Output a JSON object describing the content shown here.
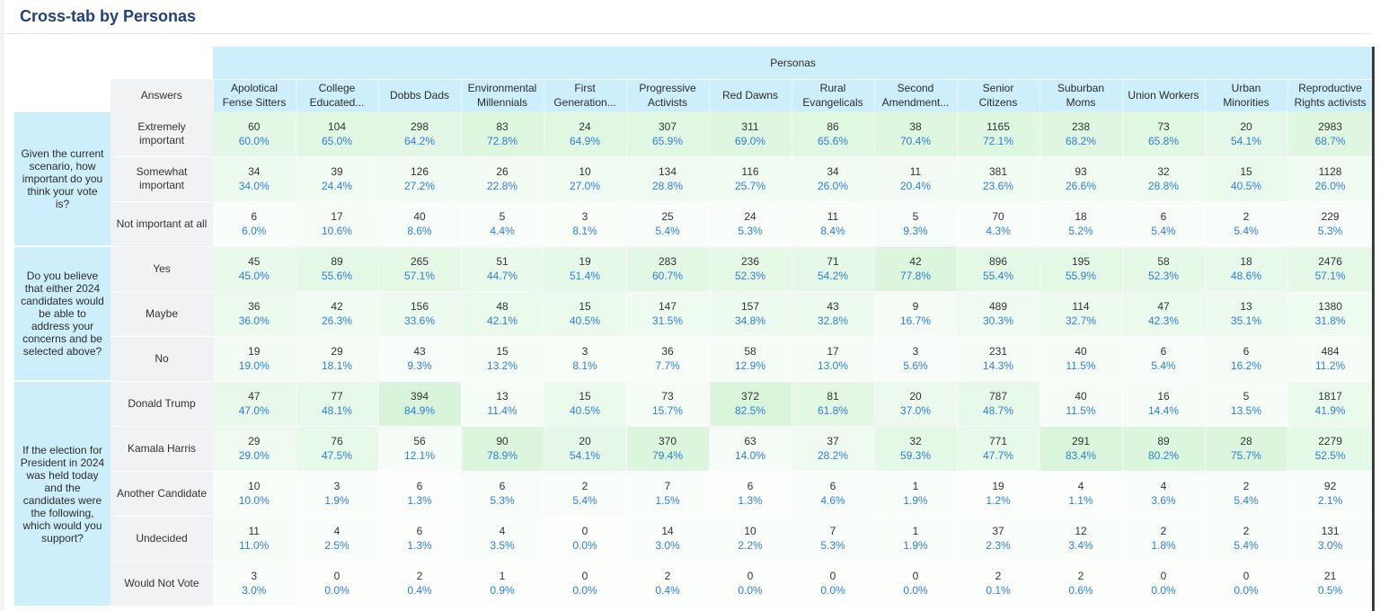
{
  "title": "Cross-tab by Personas",
  "group_header": "Personas",
  "answers_header": "Answers",
  "columns": [
    [
      "Apolotical",
      "Fense Sitters"
    ],
    [
      "College",
      "Educated..."
    ],
    [
      "Dobbs Dads"
    ],
    [
      "Environmental",
      "Millennials"
    ],
    [
      "First",
      "Generation..."
    ],
    [
      "Progressive",
      "Activists"
    ],
    [
      "Red Dawns"
    ],
    [
      "Rural",
      "Evangelicals"
    ],
    [
      "Second",
      "Amendment..."
    ],
    [
      "Senior",
      "Citizens"
    ],
    [
      "Suburban",
      "Moms"
    ],
    [
      "Union Workers"
    ],
    [
      "Urban",
      "Minorities"
    ],
    [
      "Reproductive",
      "Rights activists"
    ]
  ],
  "colors": {
    "header_bg": "#cdeefb",
    "answer_bg": "#f1f2f4",
    "percent_text": "#2d7fd4",
    "title_text": "#23417a"
  },
  "questions": [
    {
      "text": "Given the current scenario, how important do you think your vote is?",
      "rows": [
        {
          "answer": "Extremely important",
          "counts": [
            "60",
            "104",
            "298",
            "83",
            "24",
            "307",
            "311",
            "86",
            "38",
            "1165",
            "238",
            "73",
            "20",
            "2983"
          ],
          "percents": [
            "60.0%",
            "65.0%",
            "64.2%",
            "72.8%",
            "64.9%",
            "65.9%",
            "69.0%",
            "65.6%",
            "70.4%",
            "72.1%",
            "68.2%",
            "65.8%",
            "54.1%",
            "68.7%"
          ],
          "shades": [
            0.6,
            0.65,
            0.64,
            0.73,
            0.65,
            0.66,
            0.69,
            0.66,
            0.7,
            0.72,
            0.68,
            0.66,
            0.54,
            0.69
          ]
        },
        {
          "answer": "Somewhat important",
          "counts": [
            "34",
            "39",
            "126",
            "26",
            "10",
            "134",
            "116",
            "34",
            "11",
            "381",
            "93",
            "32",
            "15",
            "1128"
          ],
          "percents": [
            "34.0%",
            "24.4%",
            "27.2%",
            "22.8%",
            "27.0%",
            "28.8%",
            "25.7%",
            "26.0%",
            "20.4%",
            "23.6%",
            "26.6%",
            "28.8%",
            "40.5%",
            "26.0%"
          ],
          "shades": [
            0.34,
            0.24,
            0.27,
            0.23,
            0.27,
            0.29,
            0.26,
            0.26,
            0.2,
            0.24,
            0.27,
            0.29,
            0.41,
            0.26
          ]
        },
        {
          "answer": "Not important at all",
          "counts": [
            "6",
            "17",
            "40",
            "5",
            "3",
            "25",
            "24",
            "11",
            "5",
            "70",
            "18",
            "6",
            "2",
            "229"
          ],
          "percents": [
            "6.0%",
            "10.6%",
            "8.6%",
            "4.4%",
            "8.1%",
            "5.4%",
            "5.3%",
            "8.4%",
            "9.3%",
            "4.3%",
            "5.2%",
            "5.4%",
            "5.4%",
            "5.3%"
          ],
          "shades": [
            0.06,
            0.11,
            0.09,
            0.04,
            0.08,
            0.05,
            0.05,
            0.08,
            0.09,
            0.04,
            0.05,
            0.05,
            0.05,
            0.05
          ]
        }
      ]
    },
    {
      "text": "Do you believe that either 2024 candidates would be able to address your concerns and be selected above?",
      "rows": [
        {
          "answer": "Yes",
          "counts": [
            "45",
            "89",
            "265",
            "51",
            "19",
            "283",
            "236",
            "71",
            "42",
            "896",
            "195",
            "58",
            "18",
            "2476"
          ],
          "percents": [
            "45.0%",
            "55.6%",
            "57.1%",
            "44.7%",
            "51.4%",
            "60.7%",
            "52.3%",
            "54.2%",
            "77.8%",
            "55.4%",
            "55.9%",
            "52.3%",
            "48.6%",
            "57.1%"
          ],
          "shades": [
            0.45,
            0.56,
            0.57,
            0.45,
            0.51,
            0.61,
            0.52,
            0.54,
            0.78,
            0.55,
            0.56,
            0.52,
            0.49,
            0.57
          ]
        },
        {
          "answer": "Maybe",
          "counts": [
            "36",
            "42",
            "156",
            "48",
            "15",
            "147",
            "157",
            "43",
            "9",
            "489",
            "114",
            "47",
            "13",
            "1380"
          ],
          "percents": [
            "36.0%",
            "26.3%",
            "33.6%",
            "42.1%",
            "40.5%",
            "31.5%",
            "34.8%",
            "32.8%",
            "16.7%",
            "30.3%",
            "32.7%",
            "42.3%",
            "35.1%",
            "31.8%"
          ],
          "shades": [
            0.36,
            0.26,
            0.34,
            0.42,
            0.41,
            0.32,
            0.35,
            0.33,
            0.17,
            0.3,
            0.33,
            0.42,
            0.35,
            0.32
          ]
        },
        {
          "answer": "No",
          "counts": [
            "19",
            "29",
            "43",
            "15",
            "3",
            "36",
            "58",
            "17",
            "3",
            "231",
            "40",
            "6",
            "6",
            "484"
          ],
          "percents": [
            "19.0%",
            "18.1%",
            "9.3%",
            "13.2%",
            "8.1%",
            "7.7%",
            "12.9%",
            "13.0%",
            "5.6%",
            "14.3%",
            "11.5%",
            "5.4%",
            "16.2%",
            "11.2%"
          ],
          "shades": [
            0.19,
            0.18,
            0.09,
            0.13,
            0.08,
            0.08,
            0.13,
            0.13,
            0.06,
            0.14,
            0.12,
            0.05,
            0.16,
            0.11
          ]
        }
      ]
    },
    {
      "text": "If the election for President in 2024 was held today and the candidates were the following, which would you support?",
      "rows": [
        {
          "answer": "Donald Trump",
          "counts": [
            "47",
            "77",
            "394",
            "13",
            "15",
            "73",
            "372",
            "81",
            "20",
            "787",
            "40",
            "16",
            "5",
            "1817"
          ],
          "percents": [
            "47.0%",
            "48.1%",
            "84.9%",
            "11.4%",
            "40.5%",
            "15.7%",
            "82.5%",
            "61.8%",
            "37.0%",
            "48.7%",
            "11.5%",
            "14.4%",
            "13.5%",
            "41.9%"
          ],
          "shades": [
            0.47,
            0.48,
            0.85,
            0.11,
            0.41,
            0.16,
            0.83,
            0.62,
            0.37,
            0.49,
            0.12,
            0.14,
            0.14,
            0.42
          ]
        },
        {
          "answer": "Kamala Harris",
          "counts": [
            "29",
            "76",
            "56",
            "90",
            "20",
            "370",
            "63",
            "37",
            "32",
            "771",
            "291",
            "89",
            "28",
            "2279"
          ],
          "percents": [
            "29.0%",
            "47.5%",
            "12.1%",
            "78.9%",
            "54.1%",
            "79.4%",
            "14.0%",
            "28.2%",
            "59.3%",
            "47.7%",
            "83.4%",
            "80.2%",
            "75.7%",
            "52.5%"
          ],
          "shades": [
            0.29,
            0.48,
            0.12,
            0.79,
            0.54,
            0.79,
            0.14,
            0.28,
            0.59,
            0.48,
            0.83,
            0.8,
            0.76,
            0.53
          ]
        },
        {
          "answer": "Another Candidate",
          "counts": [
            "10",
            "3",
            "6",
            "6",
            "2",
            "7",
            "6",
            "6",
            "1",
            "19",
            "4",
            "4",
            "2",
            "92"
          ],
          "percents": [
            "10.0%",
            "1.9%",
            "1.3%",
            "5.3%",
            "5.4%",
            "1.5%",
            "1.3%",
            "4.6%",
            "1.9%",
            "1.2%",
            "1.1%",
            "3.6%",
            "5.4%",
            "2.1%"
          ],
          "shades": [
            0.1,
            0.02,
            0.01,
            0.05,
            0.05,
            0.02,
            0.01,
            0.05,
            0.02,
            0.01,
            0.01,
            0.04,
            0.05,
            0.02
          ]
        },
        {
          "answer": "Undecided",
          "counts": [
            "11",
            "4",
            "6",
            "4",
            "0",
            "14",
            "10",
            "7",
            "1",
            "37",
            "12",
            "2",
            "2",
            "131"
          ],
          "percents": [
            "11.0%",
            "2.5%",
            "1.3%",
            "3.5%",
            "0.0%",
            "3.0%",
            "2.2%",
            "5.3%",
            "1.9%",
            "2.3%",
            "3.4%",
            "1.8%",
            "5.4%",
            "3.0%"
          ],
          "shades": [
            0.11,
            0.03,
            0.01,
            0.04,
            0.0,
            0.03,
            0.02,
            0.05,
            0.02,
            0.02,
            0.03,
            0.02,
            0.05,
            0.03
          ]
        },
        {
          "answer": "Would Not Vote",
          "counts": [
            "3",
            "0",
            "2",
            "1",
            "0",
            "2",
            "0",
            "0",
            "0",
            "2",
            "2",
            "0",
            "0",
            "21"
          ],
          "percents": [
            "3.0%",
            "0.0%",
            "0.4%",
            "0.9%",
            "0.0%",
            "0.4%",
            "0.0%",
            "0.0%",
            "0.0%",
            "0.1%",
            "0.6%",
            "0.0%",
            "0.0%",
            "0.5%"
          ],
          "shades": [
            0.03,
            0.0,
            0.0,
            0.01,
            0.0,
            0.0,
            0.0,
            0.0,
            0.0,
            0.0,
            0.01,
            0.0,
            0.0,
            0.01
          ]
        }
      ]
    }
  ]
}
